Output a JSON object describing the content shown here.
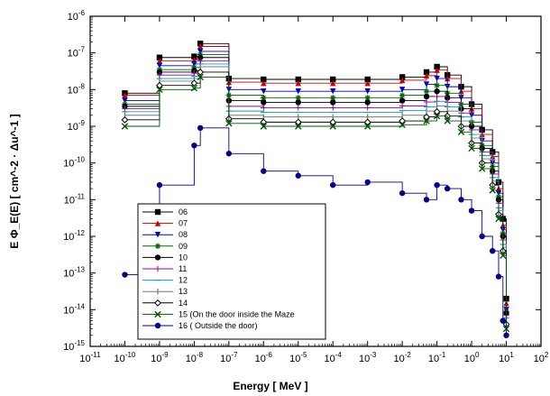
{
  "chart_data": {
    "type": "line",
    "xscale": "log",
    "yscale": "log",
    "xlim_exp": [
      -11,
      2
    ],
    "ylim_exp": [
      -15,
      -6
    ],
    "xlabel": "Energy   [ MeV ]",
    "ylabel": "E Φ_E(E)    [ cm^-2 · Δu^-1 ]",
    "x_tick_labels": [
      "10-11",
      "10-10",
      "10-9",
      "10-8",
      "10-7",
      "10-6",
      "10-5",
      "10-4",
      "10-3",
      "10-2",
      "10-1",
      "100",
      "101",
      "102"
    ],
    "y_tick_labels": [
      "10-15",
      "10-14",
      "10-13",
      "10-12",
      "10-11",
      "10-10",
      "10-9",
      "10-8",
      "10-7",
      "10-6"
    ],
    "legend_position": "lower-left",
    "x": [
      1e-10,
      1e-09,
      1e-08,
      1.5e-08,
      1e-07,
      1e-06,
      1e-05,
      0.0001,
      0.001,
      0.01,
      0.05,
      0.1,
      0.2,
      0.5,
      1,
      2,
      4,
      6,
      8,
      10
    ],
    "series": [
      {
        "name": "06",
        "color": "#000000",
        "marker": "square",
        "values": [
          8e-09,
          7.5e-08,
          8e-08,
          1.8e-07,
          2e-08,
          1.9e-08,
          1.9e-08,
          1.9e-08,
          1.9e-08,
          2.2e-08,
          3e-08,
          4.2e-08,
          2.5e-08,
          1.2e-08,
          4e-09,
          8e-10,
          2e-10,
          3e-11,
          3e-12,
          2e-14
        ]
      },
      {
        "name": "07",
        "color": "#cc0000",
        "marker": "triangle-up",
        "values": [
          7e-09,
          6e-08,
          6.5e-08,
          1.5e-07,
          1.6e-08,
          1.5e-08,
          1.5e-08,
          1.5e-08,
          1.5e-08,
          1.8e-08,
          2.4e-08,
          3.4e-08,
          2e-08,
          9e-09,
          3e-09,
          6e-10,
          1.5e-10,
          2e-11,
          2e-12,
          1.5e-14
        ]
      },
      {
        "name": "08",
        "color": "#0000cc",
        "marker": "triangle-down",
        "values": [
          5e-09,
          4.5e-08,
          5e-08,
          1.1e-07,
          1e-08,
          9e-09,
          9e-09,
          9e-09,
          9e-09,
          1e-08,
          1.4e-08,
          2e-08,
          1.2e-08,
          6e-09,
          2e-09,
          4e-10,
          1e-10,
          1.5e-11,
          1.5e-12,
          1e-14
        ]
      },
      {
        "name": "09",
        "color": "#006600",
        "marker": "star",
        "values": [
          4e-09,
          3.5e-08,
          4e-08,
          9e-08,
          7e-09,
          6e-09,
          6e-09,
          6e-09,
          6e-09,
          7e-09,
          9e-09,
          1.3e-08,
          8e-09,
          4e-09,
          1.3e-09,
          3e-10,
          8e-11,
          1.2e-11,
          1.2e-12,
          9e-15
        ]
      },
      {
        "name": "10",
        "color": "#000000",
        "marker": "circle",
        "values": [
          3.5e-09,
          3e-08,
          3.3e-08,
          7.5e-08,
          5e-09,
          4.5e-09,
          4.5e-09,
          4.5e-09,
          4.5e-09,
          5e-09,
          6.5e-09,
          9e-09,
          6e-09,
          3e-09,
          1e-09,
          2.5e-10,
          6e-11,
          1e-11,
          1e-12,
          8e-15
        ]
      },
      {
        "name": "11",
        "color": "#9900aa",
        "marker": "plus",
        "values": [
          3e-09,
          2.5e-08,
          2.8e-08,
          6e-08,
          3.5e-09,
          3.2e-09,
          3.2e-09,
          3.2e-09,
          3.2e-09,
          3.6e-09,
          4.6e-09,
          6.5e-09,
          4.5e-09,
          2.3e-09,
          8e-10,
          2e-10,
          5e-11,
          8e-12,
          8e-13,
          7e-15
        ]
      },
      {
        "name": "12",
        "color": "#00aaaa",
        "marker": "dash",
        "values": [
          2.5e-09,
          2e-08,
          2.3e-08,
          5e-08,
          2.6e-09,
          2.4e-09,
          2.4e-09,
          2.4e-09,
          2.4e-09,
          2.7e-09,
          3.4e-09,
          4.8e-09,
          3.4e-09,
          1.8e-09,
          6e-10,
          1.6e-10,
          4e-11,
          6e-12,
          6e-13,
          6e-15
        ]
      },
      {
        "name": "13",
        "color": "#777777",
        "marker": "vbar",
        "values": [
          2e-09,
          1.7e-08,
          2e-08,
          4.2e-08,
          2e-09,
          1.8e-09,
          1.8e-09,
          1.8e-09,
          1.8e-09,
          2e-09,
          2.6e-09,
          3.6e-09,
          2.6e-09,
          1.4e-09,
          4.8e-10,
          1.3e-10,
          3.2e-11,
          5e-12,
          5e-13,
          5e-15
        ]
      },
      {
        "name": "14",
        "color": "#000000",
        "marker": "diamond",
        "values": [
          1.5e-09,
          1.3e-08,
          1.5e-08,
          3e-08,
          1.6e-09,
          1.3e-09,
          1.3e-09,
          1.3e-09,
          1.3e-09,
          1.4e-09,
          1.8e-09,
          2.5e-09,
          1.9e-09,
          1e-09,
          3.5e-10,
          1e-10,
          2.5e-11,
          4e-12,
          4e-13,
          4e-15
        ]
      },
      {
        "name": "15 (On the door inside the Maze",
        "color": "#005500",
        "marker": "x",
        "values": [
          1e-09,
          1e-08,
          1.1e-08,
          2.2e-08,
          1.2e-09,
          1e-09,
          1e-09,
          1e-09,
          1e-09,
          1.1e-09,
          1.4e-09,
          1.9e-09,
          1.4e-09,
          7e-10,
          2.5e-10,
          7e-11,
          1.8e-11,
          3e-12,
          3e-13,
          3e-15
        ]
      },
      {
        "name": "16 ( Outside the door)",
        "color": "#00008b",
        "marker": "circle",
        "values": [
          9e-14,
          2.5e-11,
          3e-10,
          9e-10,
          1.8e-10,
          6e-11,
          4.5e-11,
          2.5e-11,
          3e-11,
          1.5e-11,
          1e-11,
          2.5e-11,
          2e-11,
          1e-11,
          5e-12,
          1e-12,
          4e-13,
          8e-14,
          5e-15,
          2e-15
        ]
      }
    ]
  }
}
